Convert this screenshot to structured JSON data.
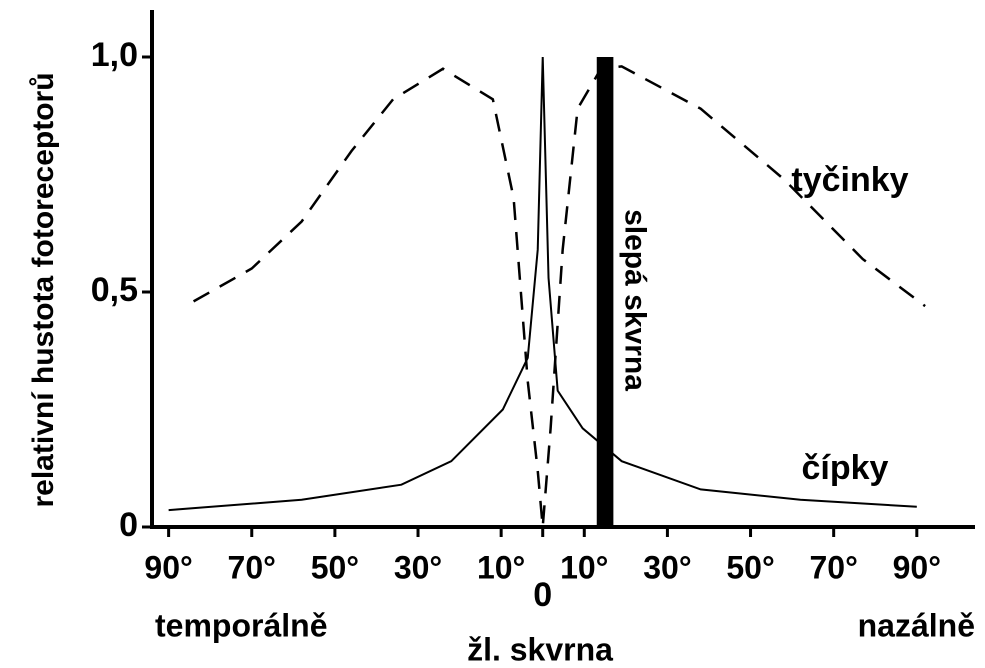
{
  "chart_data": {
    "type": "line",
    "ylabel": "relativní hustota fotoreceptorů",
    "series": [
      {
        "name": "tyčinky",
        "color": "#000000",
        "dash": true,
        "x": [
          -84,
          -70,
          -58,
          -46,
          -36,
          -24,
          -12,
          -7,
          -3.6,
          -1.2,
          0,
          1.9,
          4.8,
          8.4,
          14,
          19,
          38,
          58,
          77,
          92
        ],
        "values": [
          0.48,
          0.55,
          0.65,
          0.8,
          0.91,
          0.975,
          0.91,
          0.7,
          0.31,
          0.12,
          0,
          0.21,
          0.59,
          0.89,
          0.975,
          0.98,
          0.89,
          0.74,
          0.57,
          0.47
        ]
      },
      {
        "name": "čípky",
        "color": "#000000",
        "dash": false,
        "x": [
          -90,
          -58,
          -34,
          -22,
          -9.6,
          -3.6,
          -1.2,
          0,
          1.4,
          3.6,
          9.6,
          19,
          38,
          62,
          90
        ],
        "values": [
          0.036,
          0.058,
          0.09,
          0.14,
          0.25,
          0.36,
          0.59,
          1.0,
          0.53,
          0.29,
          0.21,
          0.14,
          0.08,
          0.058,
          0.043
        ]
      }
    ],
    "blind_spot": {
      "label": "slepá skvrna",
      "x": [
        13,
        17
      ],
      "value": 1.0
    },
    "annotations": {
      "left": "temporálně",
      "right": "nazálně",
      "center": "žl. skvrna"
    },
    "xlim": [
      -94,
      104
    ],
    "ylim": [
      0,
      1.1
    ],
    "xticks": [
      {
        "value": -90,
        "label": "90°"
      },
      {
        "value": -70,
        "label": "70°"
      },
      {
        "value": -50,
        "label": "50°"
      },
      {
        "value": -30,
        "label": "30°"
      },
      {
        "value": -10,
        "label": "10°"
      },
      0,
      {
        "value": 10,
        "label": "10°"
      },
      {
        "value": 30,
        "label": "30°"
      },
      {
        "value": 50,
        "label": "50°"
      },
      {
        "value": 70,
        "label": "70°"
      },
      {
        "value": 90,
        "label": "90°"
      }
    ],
    "yticks": [
      0,
      {
        "value": 0.5,
        "label": "0,5"
      },
      {
        "value": 1.0,
        "label": "1,0"
      }
    ]
  }
}
